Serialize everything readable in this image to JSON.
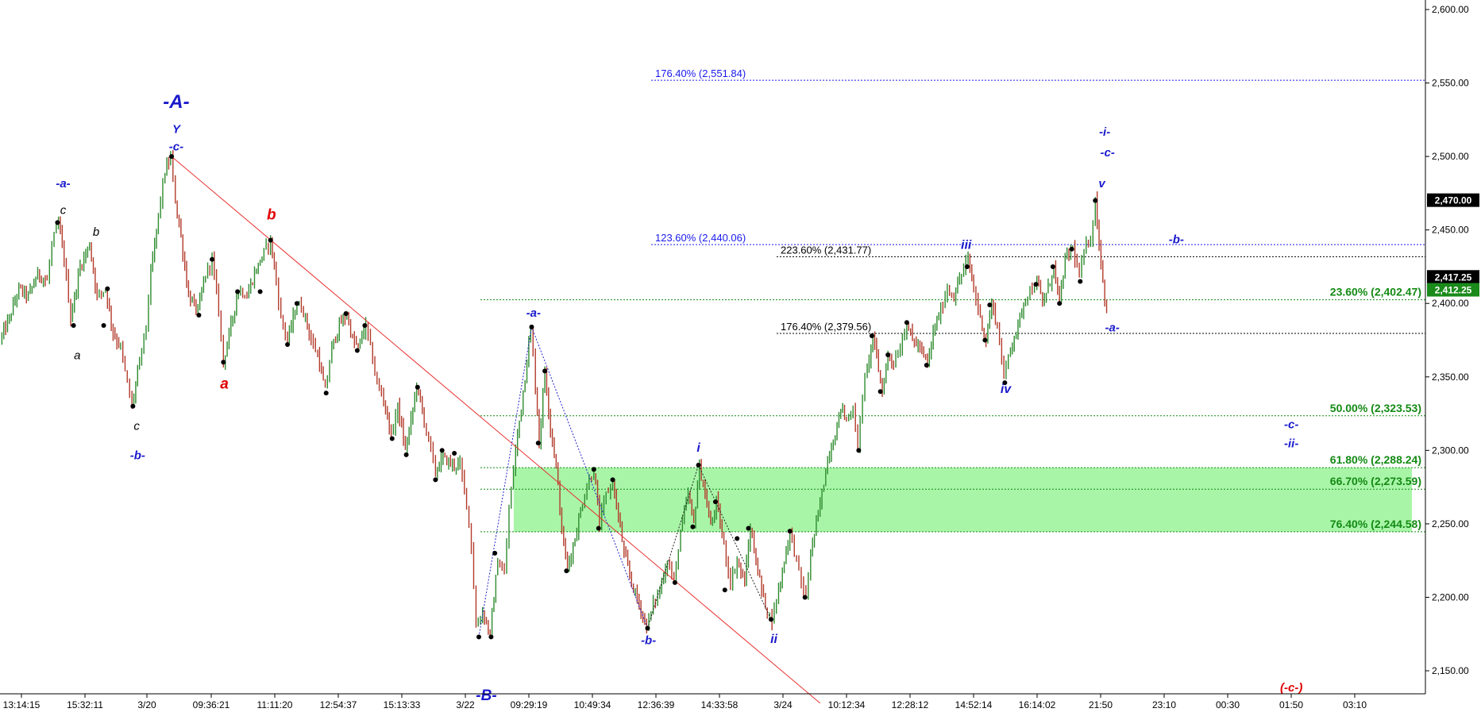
{
  "chart_data": {
    "type": "candlestick",
    "title": "",
    "xlabel": "",
    "ylabel": "",
    "ylim": [
      2130,
      2605
    ],
    "grid": false,
    "y_ticks": [
      2150,
      2200,
      2250,
      2300,
      2350,
      2400,
      2450,
      2500,
      2550,
      2600
    ],
    "y_tick_labels": [
      "2,150.00",
      "2,200.00",
      "2,250.00",
      "2,300.00",
      "2,350.00",
      "2,400.00",
      "2,450.00",
      "2,500.00",
      "2,550.00",
      "2,600.00"
    ],
    "x_tick_labels": [
      "13:14:15",
      "15:32:11",
      "3/20",
      "09:36:21",
      "11:11:20",
      "12:54:37",
      "15:13:33",
      "3/22",
      "09:29:19",
      "10:49:34",
      "12:36:39",
      "14:33:58",
      "3/24",
      "10:12:34",
      "12:28:12",
      "14:52:14",
      "16:14:02",
      "21:50",
      "23:10",
      "00:30",
      "01:50",
      "03:10"
    ],
    "price_markers": [
      {
        "label": "2,470.00",
        "value": 2470.0,
        "color": "#000000"
      },
      {
        "label": "2,417.25",
        "value": 2417.25,
        "color": "#000000"
      },
      {
        "label": "2,412.25",
        "value": 2412.25,
        "color": "#1a8a1a"
      }
    ],
    "fib_levels": [
      {
        "label": "176.40% (2,551.84)",
        "value": 2551.84,
        "color": "#1a1aee",
        "style": "blue"
      },
      {
        "label": "123.60% (2,440.06)",
        "value": 2440.06,
        "color": "#1a1aee",
        "style": "blue"
      },
      {
        "label": "223.60% (2,431.77)",
        "value": 2431.77,
        "color": "#000000",
        "style": "black"
      },
      {
        "label": "23.60% (2,402.47)",
        "value": 2402.47,
        "color": "#138a13",
        "style": "green"
      },
      {
        "label": "176.40% (2,379.56)",
        "value": 2379.56,
        "color": "#000000",
        "style": "black"
      },
      {
        "label": "50.00% (2,323.53)",
        "value": 2323.53,
        "color": "#138a13",
        "style": "green"
      },
      {
        "label": "61.80% (2,288.24)",
        "value": 2288.24,
        "color": "#138a13",
        "style": "green"
      },
      {
        "label": "66.70% (2,273.59)",
        "value": 2273.59,
        "color": "#138a13",
        "style": "green"
      },
      {
        "label": "76.40% (2,244.58)",
        "value": 2244.58,
        "color": "#138a13",
        "style": "green"
      }
    ],
    "zone": {
      "top": 2288.24,
      "bottom": 2244.58,
      "color": "#a8f5a8"
    },
    "price_path": [
      [
        0,
        2375
      ],
      [
        10,
        2390
      ],
      [
        20,
        2410
      ],
      [
        30,
        2405
      ],
      [
        40,
        2420
      ],
      [
        50,
        2415
      ],
      [
        55,
        2440
      ],
      [
        62,
        2455
      ],
      [
        68,
        2430
      ],
      [
        75,
        2390
      ],
      [
        85,
        2425
      ],
      [
        95,
        2440
      ],
      [
        103,
        2405
      ],
      [
        112,
        2410
      ],
      [
        120,
        2380
      ],
      [
        128,
        2370
      ],
      [
        135,
        2345
      ],
      [
        140,
        2330
      ],
      [
        148,
        2360
      ],
      [
        155,
        2385
      ],
      [
        160,
        2420
      ],
      [
        168,
        2460
      ],
      [
        175,
        2490
      ],
      [
        181,
        2499
      ],
      [
        186,
        2470
      ],
      [
        192,
        2445
      ],
      [
        200,
        2405
      ],
      [
        210,
        2395
      ],
      [
        218,
        2420
      ],
      [
        225,
        2430
      ],
      [
        232,
        2395
      ],
      [
        237,
        2360
      ],
      [
        245,
        2385
      ],
      [
        253,
        2410
      ],
      [
        262,
        2405
      ],
      [
        270,
        2420
      ],
      [
        280,
        2435
      ],
      [
        287,
        2443
      ],
      [
        293,
        2415
      ],
      [
        298,
        2390
      ],
      [
        305,
        2375
      ],
      [
        315,
        2400
      ],
      [
        322,
        2395
      ],
      [
        330,
        2375
      ],
      [
        337,
        2365
      ],
      [
        345,
        2340
      ],
      [
        352,
        2370
      ],
      [
        360,
        2385
      ],
      [
        368,
        2393
      ],
      [
        374,
        2375
      ],
      [
        380,
        2370
      ],
      [
        388,
        2385
      ],
      [
        393,
        2370
      ],
      [
        400,
        2345
      ],
      [
        407,
        2335
      ],
      [
        415,
        2310
      ],
      [
        422,
        2330
      ],
      [
        430,
        2300
      ],
      [
        436,
        2320
      ],
      [
        442,
        2345
      ],
      [
        450,
        2320
      ],
      [
        457,
        2300
      ],
      [
        462,
        2285
      ],
      [
        470,
        2295
      ],
      [
        480,
        2290
      ],
      [
        488,
        2290
      ],
      [
        495,
        2265
      ],
      [
        500,
        2235
      ],
      [
        505,
        2180
      ],
      [
        512,
        2190
      ],
      [
        520,
        2175
      ],
      [
        528,
        2225
      ],
      [
        535,
        2215
      ],
      [
        540,
        2260
      ],
      [
        547,
        2300
      ],
      [
        555,
        2340
      ],
      [
        563,
        2383
      ],
      [
        568,
        2345
      ],
      [
        572,
        2305
      ],
      [
        578,
        2355
      ],
      [
        584,
        2315
      ],
      [
        590,
        2290
      ],
      [
        596,
        2245
      ],
      [
        602,
        2220
      ],
      [
        610,
        2240
      ],
      [
        618,
        2265
      ],
      [
        625,
        2280
      ],
      [
        630,
        2287
      ],
      [
        636,
        2250
      ],
      [
        643,
        2270
      ],
      [
        650,
        2278
      ],
      [
        656,
        2255
      ],
      [
        662,
        2230
      ],
      [
        670,
        2210
      ],
      [
        678,
        2195
      ],
      [
        686,
        2180
      ],
      [
        693,
        2195
      ],
      [
        700,
        2205
      ],
      [
        708,
        2225
      ],
      [
        715,
        2210
      ],
      [
        722,
        2245
      ],
      [
        730,
        2270
      ],
      [
        736,
        2250
      ],
      [
        742,
        2289
      ],
      [
        748,
        2270
      ],
      [
        754,
        2248
      ],
      [
        760,
        2265
      ],
      [
        768,
        2235
      ],
      [
        775,
        2210
      ],
      [
        782,
        2225
      ],
      [
        790,
        2210
      ],
      [
        796,
        2247
      ],
      [
        802,
        2225
      ],
      [
        808,
        2205
      ],
      [
        814,
        2190
      ],
      [
        819,
        2185
      ],
      [
        826,
        2205
      ],
      [
        832,
        2225
      ],
      [
        838,
        2245
      ],
      [
        845,
        2225
      ],
      [
        850,
        2210
      ],
      [
        855,
        2200
      ],
      [
        860,
        2230
      ],
      [
        866,
        2250
      ],
      [
        872,
        2270
      ],
      [
        878,
        2295
      ],
      [
        886,
        2310
      ],
      [
        892,
        2330
      ],
      [
        898,
        2320
      ],
      [
        905,
        2330
      ],
      [
        910,
        2300
      ],
      [
        915,
        2340
      ],
      [
        920,
        2355
      ],
      [
        926,
        2378
      ],
      [
        932,
        2355
      ],
      [
        936,
        2340
      ],
      [
        942,
        2365
      ],
      [
        948,
        2360
      ],
      [
        955,
        2370
      ],
      [
        962,
        2387
      ],
      [
        968,
        2375
      ],
      [
        976,
        2370
      ],
      [
        984,
        2358
      ],
      [
        990,
        2380
      ],
      [
        998,
        2395
      ],
      [
        1005,
        2410
      ],
      [
        1012,
        2405
      ],
      [
        1020,
        2420
      ],
      [
        1027,
        2430
      ],
      [
        1033,
        2410
      ],
      [
        1040,
        2390
      ],
      [
        1046,
        2375
      ],
      [
        1052,
        2400
      ],
      [
        1058,
        2385
      ],
      [
        1065,
        2350
      ],
      [
        1072,
        2370
      ],
      [
        1080,
        2385
      ],
      [
        1088,
        2405
      ],
      [
        1095,
        2410
      ],
      [
        1100,
        2415
      ],
      [
        1106,
        2400
      ],
      [
        1112,
        2410
      ],
      [
        1118,
        2425
      ],
      [
        1124,
        2400
      ],
      [
        1130,
        2430
      ],
      [
        1138,
        2438
      ],
      [
        1145,
        2418
      ],
      [
        1150,
        2435
      ],
      [
        1157,
        2445
      ],
      [
        1162,
        2470
      ],
      [
        1166,
        2440
      ],
      [
        1170,
        2415
      ],
      [
        1174,
        2395
      ]
    ],
    "pivots": [
      [
        61,
        2455
      ],
      [
        78,
        2385
      ],
      [
        110,
        2385
      ],
      [
        114,
        2410
      ],
      [
        141,
        2330
      ],
      [
        182,
        2500
      ],
      [
        211,
        2392
      ],
      [
        225,
        2430
      ],
      [
        237,
        2360
      ],
      [
        252,
        2408
      ],
      [
        276,
        2408
      ],
      [
        287,
        2443
      ],
      [
        305,
        2372
      ],
      [
        315,
        2400
      ],
      [
        346,
        2339
      ],
      [
        367,
        2393
      ],
      [
        379,
        2368
      ],
      [
        387,
        2385
      ],
      [
        416,
        2308
      ],
      [
        431,
        2297
      ],
      [
        443,
        2343
      ],
      [
        462,
        2280
      ],
      [
        469,
        2300
      ],
      [
        482,
        2298
      ],
      [
        508,
        2173
      ],
      [
        521,
        2173
      ],
      [
        525,
        2230
      ],
      [
        564,
        2384
      ],
      [
        578,
        2354
      ],
      [
        571,
        2305
      ],
      [
        601,
        2218
      ],
      [
        630,
        2287
      ],
      [
        635,
        2247
      ],
      [
        650,
        2280
      ],
      [
        687,
        2179
      ],
      [
        716,
        2210
      ],
      [
        735,
        2248
      ],
      [
        741,
        2290
      ],
      [
        759,
        2265
      ],
      [
        769,
        2205
      ],
      [
        782,
        2240
      ],
      [
        794,
        2247
      ],
      [
        818,
        2185
      ],
      [
        838,
        2245
      ],
      [
        854,
        2200
      ],
      [
        911,
        2300
      ],
      [
        925,
        2378
      ],
      [
        934,
        2340
      ],
      [
        942,
        2365
      ],
      [
        962,
        2387
      ],
      [
        983,
        2358
      ],
      [
        1026,
        2425
      ],
      [
        1045,
        2375
      ],
      [
        1050,
        2399
      ],
      [
        1066,
        2346
      ],
      [
        1099,
        2413
      ],
      [
        1117,
        2425
      ],
      [
        1124,
        2400
      ],
      [
        1137,
        2437
      ],
      [
        1146,
        2415
      ],
      [
        1162,
        2470
      ]
    ],
    "overlay_lines": [
      {
        "style": "solid-red",
        "from": [
          182,
          2500
        ],
        "to": [
          870,
          2128
        ]
      },
      {
        "style": "dotted-blue",
        "from": [
          508,
          2173
        ],
        "to": [
          564,
          2384
        ]
      },
      {
        "style": "dotted-blue",
        "from": [
          564,
          2384
        ],
        "to": [
          687,
          2179
        ]
      },
      {
        "style": "dotted-black",
        "from": [
          687,
          2179
        ],
        "to": [
          741,
          2290
        ]
      },
      {
        "style": "dotted-black",
        "from": [
          741,
          2290
        ],
        "to": [
          818,
          2185
        ]
      }
    ],
    "wave_labels": [
      {
        "text": "-A-",
        "x": 187,
        "y": 2533,
        "style": "blue",
        "size": 24
      },
      {
        "text": "Y",
        "x": 187,
        "y": 2516,
        "style": "blue",
        "size": 15
      },
      {
        "text": "-c-",
        "x": 187,
        "y": 2504,
        "style": "blue",
        "size": 15
      },
      {
        "text": "-a-",
        "x": 67,
        "y": 2479,
        "style": "blue",
        "size": 15
      },
      {
        "text": "c",
        "x": 67,
        "y": 2461,
        "style": "black",
        "size": 15
      },
      {
        "text": "b",
        "x": 102,
        "y": 2446,
        "style": "black",
        "size": 15
      },
      {
        "text": "a",
        "x": 82,
        "y": 2362,
        "style": "black",
        "size": 15
      },
      {
        "text": "c",
        "x": 145,
        "y": 2314,
        "style": "black",
        "size": 15
      },
      {
        "text": "-b-",
        "x": 146,
        "y": 2294,
        "style": "blue",
        "size": 15
      },
      {
        "text": "b",
        "x": 288,
        "y": 2457,
        "style": "red",
        "size": 19
      },
      {
        "text": "a",
        "x": 238,
        "y": 2342,
        "style": "red",
        "size": 19
      },
      {
        "text": "-a-",
        "x": 566,
        "y": 2391,
        "style": "blue",
        "size": 15
      },
      {
        "text": "-B-",
        "x": 516,
        "y": 2130,
        "style": "blue",
        "size": 19
      },
      {
        "text": "-b-",
        "x": 688,
        "y": 2168,
        "style": "blue",
        "size": 15
      },
      {
        "text": "i",
        "x": 741,
        "y": 2299,
        "style": "blue",
        "size": 16
      },
      {
        "text": "ii",
        "x": 821,
        "y": 2169,
        "style": "blue",
        "size": 16
      },
      {
        "text": "iii",
        "x": 1025,
        "y": 2437,
        "style": "blue",
        "size": 16
      },
      {
        "text": "iv",
        "x": 1067,
        "y": 2339,
        "style": "blue",
        "size": 16
      },
      {
        "text": "-i-",
        "x": 1172,
        "y": 2514,
        "style": "blue",
        "size": 15
      },
      {
        "text": "-c-",
        "x": 1175,
        "y": 2500,
        "style": "blue",
        "size": 15
      },
      {
        "text": "v",
        "x": 1169,
        "y": 2479,
        "style": "blue",
        "size": 15
      },
      {
        "text": "-b-",
        "x": 1248,
        "y": 2441,
        "style": "blue",
        "size": 15
      },
      {
        "text": "-a-",
        "x": 1180,
        "y": 2381,
        "style": "blue",
        "size": 15
      },
      {
        "text": "-c-",
        "x": 1370,
        "y": 2315,
        "style": "blue",
        "size": 15
      },
      {
        "text": "-ii-",
        "x": 1370,
        "y": 2302,
        "style": "blue",
        "size": 15
      },
      {
        "text": "(-c-)",
        "x": 1370,
        "y": 2136,
        "style": "red",
        "size": 15
      }
    ]
  },
  "colors": {
    "candle_up": "#2e8b2e",
    "candle_down": "#b23a2a",
    "pivot": "#000000",
    "axis": "#000000"
  }
}
